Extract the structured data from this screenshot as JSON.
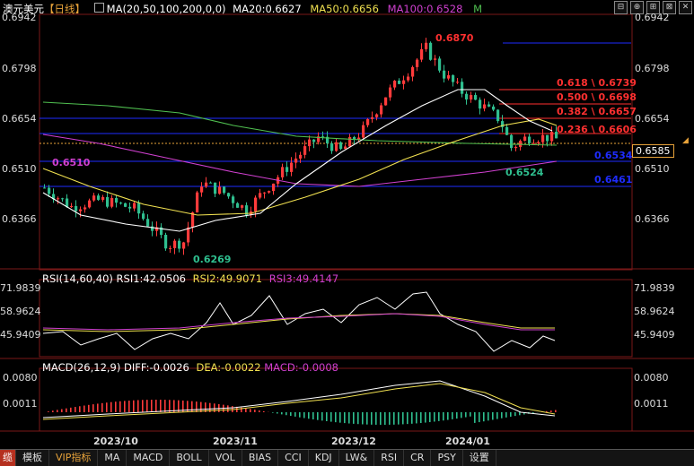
{
  "header": {
    "symbol": "澳元美元",
    "period": "【日线】",
    "ma_params": "MA(20,50,100,200,0,0)",
    "ma20": "MA20:0.6627",
    "ma50": "MA50:0.6656",
    "ma100": "MA100:0.6528",
    "m_marker": "M",
    "window_buttons": [
      "⊟",
      "⊕",
      "⊞",
      "⊠",
      "✕"
    ]
  },
  "price_axis": {
    "left_labels": [
      "0.6942",
      "0.6798",
      "0.6654",
      "0.6510",
      "0.6366"
    ],
    "right_labels": [
      "0.6942",
      "0.6798",
      "0.6654",
      "0.6510",
      "0.6366"
    ],
    "current_price": "0.6585"
  },
  "annotations": {
    "high": "0.6870",
    "low": "0.6269",
    "left_marker": "0.6510",
    "recent_low": "0.6524",
    "level_a": "0.6534",
    "level_b": "0.6461"
  },
  "fib": [
    {
      "text": "0.618 \\ 0.6739"
    },
    {
      "text": "0.500 \\ 0.6698"
    },
    {
      "text": "0.382 \\ 0.6657"
    },
    {
      "text": "0.236 \\ 0.6606"
    }
  ],
  "rsi": {
    "params": "RSI(14,60,40)",
    "rsi1": "RSI1:42.0506",
    "rsi2": "RSI2:49.9071",
    "rsi3": "RSI3:49.4147",
    "axis": [
      "71.9839",
      "58.9624",
      "45.9409"
    ]
  },
  "macd": {
    "params": "MACD(26,12,9)",
    "diff": "DIFF:-0.0026",
    "dea": "DEA:-0.0022",
    "macd": "MACD:-0.0008",
    "axis": [
      "0.0080",
      "0.0011"
    ]
  },
  "dates": [
    "2023/10",
    "2023/11",
    "2023/12",
    "2024/01"
  ],
  "tabs": [
    "缆",
    "模板",
    "VIP指标",
    "MA",
    "MACD",
    "BOLL",
    "VOL",
    "BIAS",
    "CCI",
    "KDJ",
    "LW&",
    "RSI",
    "CR",
    "PSY",
    "设置"
  ],
  "colors": {
    "up": "#ff3b3b",
    "down": "#2fbf8f",
    "ma20": "#ffffff",
    "ma50": "#f0e050",
    "ma100": "#d040d0",
    "ma200": "#50c050",
    "fib": "#ff3030",
    "blue_level": "#1e2cff"
  }
}
